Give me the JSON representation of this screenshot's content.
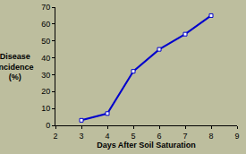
{
  "chart_data": {
    "type": "line",
    "x_label": "Days After Soil Saturation",
    "y_label": "Disease Incidence (%)",
    "x": [
      3,
      4,
      5,
      6,
      7,
      8
    ],
    "values": [
      3,
      7,
      32,
      45,
      54,
      65
    ],
    "color": "#0000cc",
    "marker": "square",
    "xlim": [
      2,
      9
    ],
    "xticks": [
      2,
      3,
      4,
      5,
      6,
      7,
      8,
      9
    ],
    "ylim": [
      0,
      70
    ],
    "yticks": [
      0,
      10,
      20,
      30,
      40,
      50,
      60,
      70
    ],
    "grid": false
  }
}
